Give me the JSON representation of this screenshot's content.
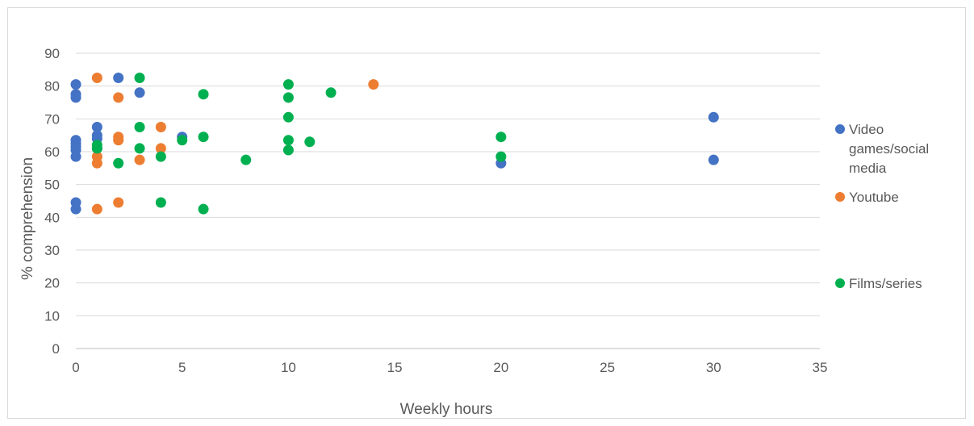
{
  "chart_data": {
    "type": "scatter",
    "title": "",
    "xlabel": "Weekly hours",
    "ylabel": "% comprehension",
    "xlim": [
      0,
      35
    ],
    "ylim": [
      0,
      90
    ],
    "x_ticks": [
      0,
      5,
      10,
      15,
      20,
      25,
      30,
      35
    ],
    "y_ticks": [
      0,
      10,
      20,
      30,
      40,
      50,
      60,
      70,
      80,
      90
    ],
    "grid": "horizontal",
    "legend_position": "right",
    "series": [
      {
        "name": "Video games/social media",
        "color": "#4472C4",
        "points": [
          [
            0,
            80.5
          ],
          [
            0,
            77.5
          ],
          [
            0,
            76.5
          ],
          [
            0,
            63.5
          ],
          [
            0,
            62.5
          ],
          [
            0,
            61.5
          ],
          [
            0,
            60.5
          ],
          [
            0,
            58.5
          ],
          [
            0,
            44.5
          ],
          [
            0,
            42.5
          ],
          [
            1,
            67.5
          ],
          [
            1,
            65
          ],
          [
            1,
            64
          ],
          [
            1,
            61
          ],
          [
            2,
            82.5
          ],
          [
            3,
            78
          ],
          [
            5,
            64.5
          ],
          [
            20,
            56.5
          ],
          [
            30,
            70.5
          ],
          [
            30,
            57.5
          ]
        ]
      },
      {
        "name": "Youtube",
        "color": "#ED7D31",
        "points": [
          [
            1,
            82.5
          ],
          [
            1,
            58.5
          ],
          [
            1,
            56.5
          ],
          [
            1,
            42.5
          ],
          [
            2,
            76.5
          ],
          [
            2,
            64.5
          ],
          [
            2,
            63.5
          ],
          [
            2,
            44.5
          ],
          [
            3,
            57.5
          ],
          [
            4,
            67.5
          ],
          [
            4,
            61
          ],
          [
            14,
            80.5
          ]
        ]
      },
      {
        "name": "Films/series",
        "color": "#00B050",
        "points": [
          [
            1,
            62
          ],
          [
            1,
            61
          ],
          [
            2,
            56.5
          ],
          [
            3,
            82.5
          ],
          [
            3,
            67.5
          ],
          [
            3,
            61
          ],
          [
            4,
            58.5
          ],
          [
            4,
            44.5
          ],
          [
            5,
            63.5
          ],
          [
            6,
            77.5
          ],
          [
            6,
            64.5
          ],
          [
            6,
            42.5
          ],
          [
            8,
            57.5
          ],
          [
            10,
            80.5
          ],
          [
            10,
            76.5
          ],
          [
            10,
            70.5
          ],
          [
            10,
            63.5
          ],
          [
            10,
            60.5
          ],
          [
            11,
            63
          ],
          [
            12,
            78
          ],
          [
            20,
            64.5
          ],
          [
            20,
            58.5
          ]
        ]
      }
    ],
    "legend": [
      {
        "lines": [
          "Video",
          "games/social",
          "media"
        ],
        "color": "#4472C4"
      },
      {
        "lines": [
          "Youtube"
        ],
        "color": "#ED7D31"
      },
      {
        "lines": [
          "Films/series"
        ],
        "color": "#00B050"
      }
    ]
  }
}
